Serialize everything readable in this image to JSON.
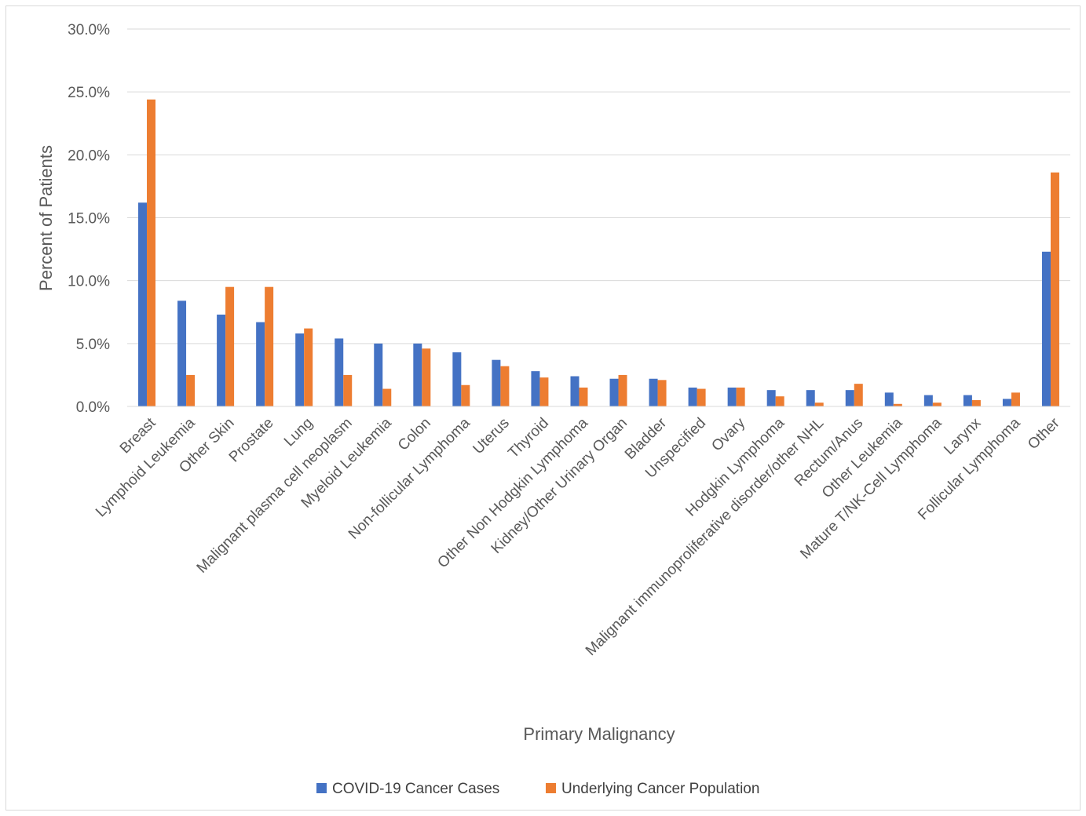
{
  "chart_data": {
    "type": "bar",
    "title": "",
    "xlabel": "Primary Malignancy",
    "ylabel": "Percent of Patients",
    "ylim": [
      0,
      30
    ],
    "yticks": [
      "0.0%",
      "5.0%",
      "10.0%",
      "15.0%",
      "20.0%",
      "25.0%",
      "30.0%"
    ],
    "grid": true,
    "legend_position": "bottom",
    "categories": [
      "Breast",
      "Lymphoid Leukemia",
      "Other Skin",
      "Prostate",
      "Lung",
      "Malignant plasma cell neoplasm",
      "Myeloid Leukemia",
      "Colon",
      "Non-follicular Lymphoma",
      "Uterus",
      "Thyroid",
      "Other Non Hodgkin Lymphoma",
      "Kidney/Other Urinary Organ",
      "Bladder",
      "Unspecified",
      "Ovary",
      "Hodgkin Lymphoma",
      "Malignant immunoproliferative disorder/other NHL",
      "Rectum/Anus",
      "Other Leukemia",
      "Mature T/NK-Cell Lymphoma",
      "Larynx",
      "Follicular Lymphoma",
      "Other"
    ],
    "series": [
      {
        "name": "COVID-19 Cancer Cases",
        "color": "#4472C4",
        "values": [
          16.2,
          8.4,
          7.3,
          6.7,
          5.8,
          5.4,
          5.0,
          5.0,
          4.3,
          3.7,
          2.8,
          2.4,
          2.2,
          2.2,
          1.5,
          1.5,
          1.3,
          1.3,
          1.3,
          1.1,
          0.9,
          0.9,
          0.6,
          12.3
        ]
      },
      {
        "name": "Underlying Cancer Population",
        "color": "#ED7D31",
        "values": [
          24.4,
          2.5,
          9.5,
          9.5,
          6.2,
          2.5,
          1.4,
          4.6,
          1.7,
          3.2,
          2.3,
          1.5,
          2.5,
          2.1,
          1.4,
          1.5,
          0.8,
          0.3,
          1.8,
          0.2,
          0.3,
          0.5,
          1.1,
          18.6
        ]
      }
    ]
  }
}
